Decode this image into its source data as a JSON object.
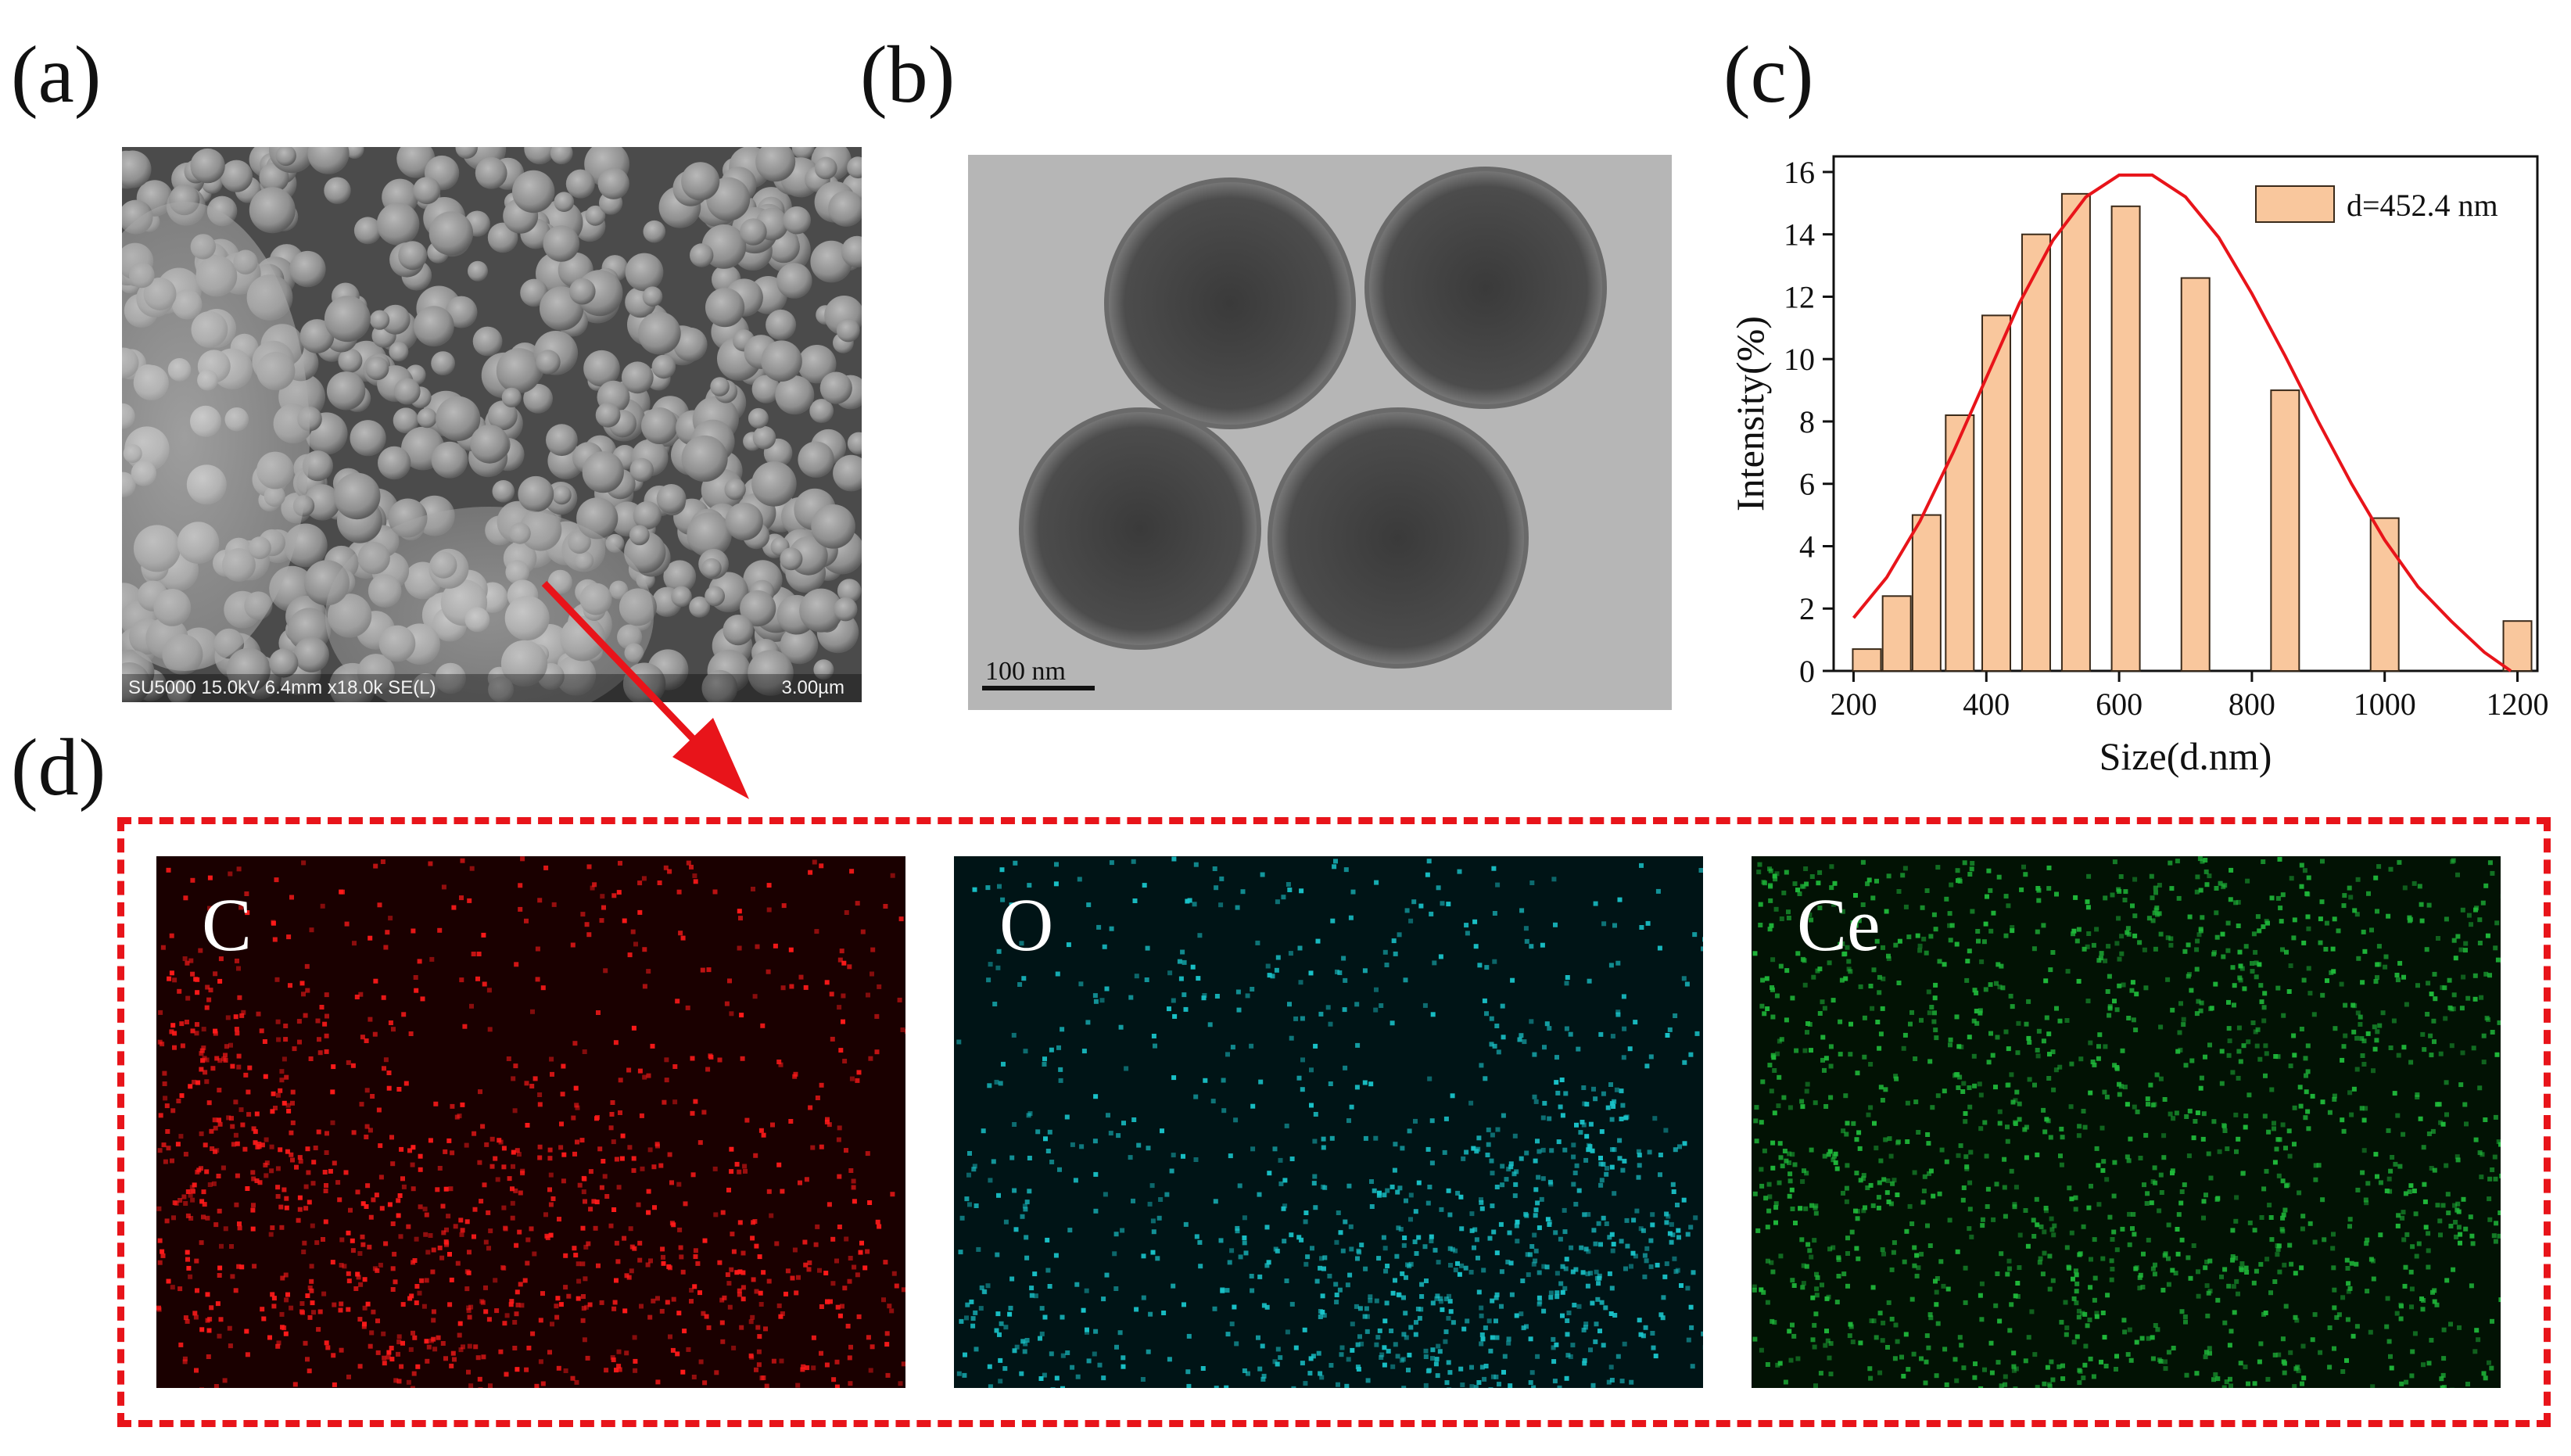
{
  "panels": {
    "a": {
      "label": "(a)",
      "info_text": "SU5000 15.0kV 6.4mm x18.0k SE(L)",
      "scale_text": "3.00µm"
    },
    "b": {
      "label": "(b)",
      "scale_text": "100 nm"
    },
    "c": {
      "label": "(c)"
    },
    "d": {
      "label": "(d)",
      "maps": [
        {
          "element": "C",
          "color": "#ff1a1a"
        },
        {
          "element": "O",
          "color": "#19c3c9"
        },
        {
          "element": "Ce",
          "color": "#1fb83a"
        }
      ]
    }
  },
  "colors": {
    "bar_fill": "#f9c79d",
    "bar_stroke": "#3a2a1a",
    "fit_line": "#e8141a",
    "highlight": "#e8141a"
  },
  "chart_data": {
    "type": "bar",
    "xlabel": "Size(d.nm)",
    "ylabel": "Intensity(%)",
    "xlim": [
      170,
      1230
    ],
    "ylim": [
      0,
      16.5
    ],
    "xticks": [
      200,
      400,
      600,
      800,
      1000,
      1200
    ],
    "yticks": [
      0,
      2,
      4,
      6,
      8,
      10,
      12,
      14,
      16
    ],
    "legend": {
      "label": "d=452.4 nm",
      "position": "top-right"
    },
    "series": [
      {
        "name": "d=452.4 nm",
        "x": [
          220,
          265,
          310,
          360,
          415,
          475,
          535,
          610,
          715,
          850,
          1000,
          1200
        ],
        "values": [
          0.7,
          2.4,
          5.0,
          8.2,
          11.4,
          14.0,
          15.3,
          14.9,
          12.6,
          9.0,
          4.9,
          1.6
        ]
      }
    ],
    "fit_curve": {
      "type": "gaussian",
      "x": [
        200,
        250,
        300,
        350,
        400,
        450,
        500,
        550,
        600,
        650,
        700,
        750,
        800,
        850,
        900,
        950,
        1000,
        1050,
        1100,
        1150,
        1190
      ],
      "y": [
        1.7,
        3.0,
        4.8,
        7.0,
        9.4,
        11.8,
        13.8,
        15.2,
        15.9,
        15.9,
        15.2,
        13.9,
        12.1,
        10.1,
        8.0,
        6.0,
        4.2,
        2.7,
        1.6,
        0.6,
        0.0
      ]
    }
  }
}
